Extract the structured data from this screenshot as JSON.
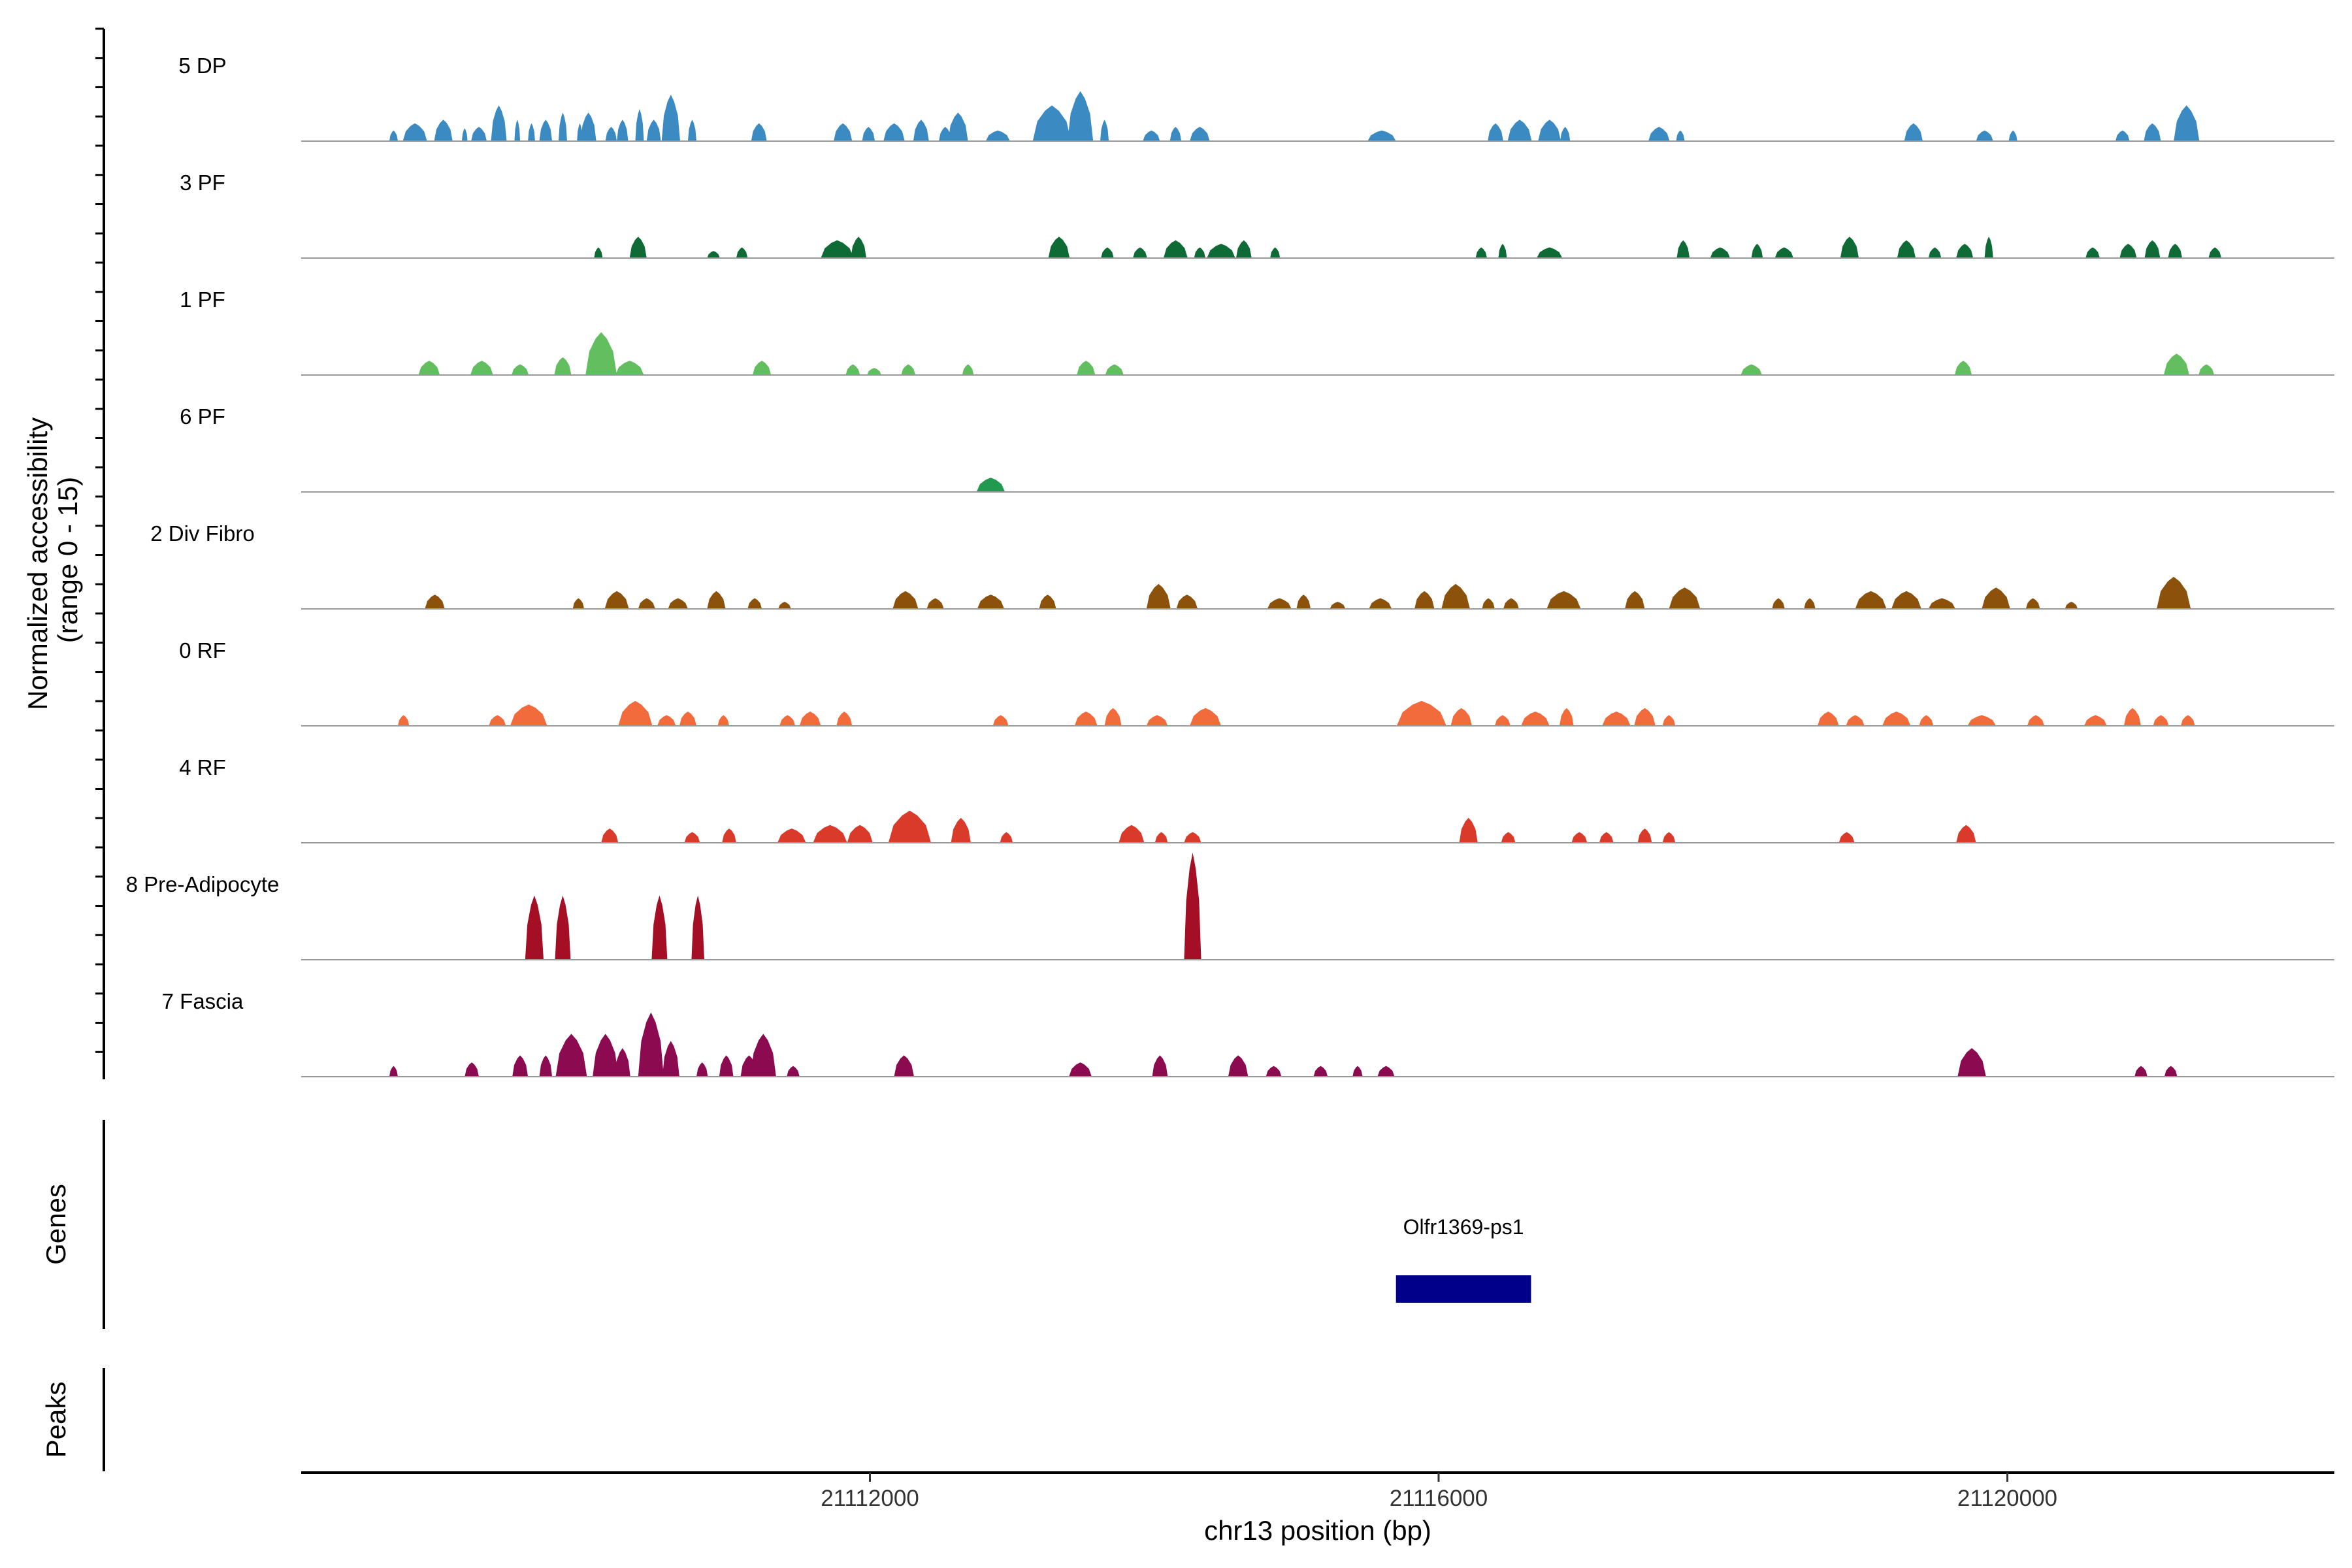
{
  "chart_data": {
    "type": "area",
    "title": "",
    "ylabel": "Normalized accessibility\n(range 0 - 15)",
    "ylim": [
      0,
      15
    ],
    "xlabel": "chr13 position (bp)",
    "xlim": [
      21108000,
      21122300
    ],
    "xticks": [
      21112000,
      21116000,
      21120000
    ],
    "xtick_labels": [
      "21112000",
      "21116000",
      "21120000"
    ],
    "baseline_color": "#999999",
    "tracks": [
      {
        "name": "5 DP",
        "color": "#3B8BC2",
        "peaks": [
          [
            21108650,
            60,
            1.5
          ],
          [
            21108800,
            170,
            2.5
          ],
          [
            21109000,
            130,
            3
          ],
          [
            21109150,
            40,
            1.8
          ],
          [
            21109250,
            110,
            2
          ],
          [
            21109390,
            110,
            5
          ],
          [
            21109520,
            40,
            3
          ],
          [
            21109620,
            50,
            2.5
          ],
          [
            21109720,
            90,
            3
          ],
          [
            21109840,
            60,
            4
          ],
          [
            21109960,
            40,
            2.5
          ],
          [
            21110020,
            110,
            4
          ],
          [
            21110180,
            80,
            2
          ],
          [
            21110260,
            80,
            3
          ],
          [
            21110380,
            60,
            4.5
          ],
          [
            21110480,
            100,
            3
          ],
          [
            21110600,
            130,
            6.5
          ],
          [
            21110750,
            60,
            3
          ],
          [
            21111220,
            110,
            2.5
          ],
          [
            21111810,
            130,
            2.5
          ],
          [
            21111990,
            90,
            2
          ],
          [
            21112170,
            150,
            2.5
          ],
          [
            21112360,
            110,
            3
          ],
          [
            21112530,
            90,
            2
          ],
          [
            21112620,
            140,
            4
          ],
          [
            21112900,
            170,
            1.5
          ],
          [
            21113280,
            270,
            5
          ],
          [
            21113480,
            180,
            7
          ],
          [
            21113650,
            60,
            3
          ],
          [
            21113980,
            120,
            1.5
          ],
          [
            21114150,
            80,
            2
          ],
          [
            21114320,
            140,
            2
          ],
          [
            21115600,
            200,
            1.5
          ],
          [
            21116400,
            110,
            2.5
          ],
          [
            21116570,
            170,
            3
          ],
          [
            21116780,
            160,
            3
          ],
          [
            21116890,
            70,
            2
          ],
          [
            21117550,
            150,
            2
          ],
          [
            21117700,
            60,
            1.5
          ],
          [
            21119340,
            130,
            2.5
          ],
          [
            21119840,
            120,
            1.5
          ],
          [
            21120040,
            60,
            1.5
          ],
          [
            21120810,
            100,
            1.5
          ],
          [
            21121020,
            120,
            2.5
          ],
          [
            21121260,
            180,
            5
          ]
        ]
      },
      {
        "name": "3 PF",
        "color": "#0E6B35",
        "peaks": [
          [
            21110090,
            60,
            1.5
          ],
          [
            21110370,
            120,
            3
          ],
          [
            21110900,
            90,
            1
          ],
          [
            21111100,
            80,
            1.5
          ],
          [
            21111770,
            230,
            2.5
          ],
          [
            21111920,
            110,
            3
          ],
          [
            21113330,
            150,
            3
          ],
          [
            21113670,
            90,
            1.5
          ],
          [
            21113900,
            100,
            1.5
          ],
          [
            21114150,
            170,
            2.5
          ],
          [
            21114320,
            80,
            1.5
          ],
          [
            21114470,
            200,
            2
          ],
          [
            21114630,
            110,
            2.5
          ],
          [
            21114850,
            70,
            1.5
          ],
          [
            21116300,
            80,
            1.5
          ],
          [
            21116450,
            60,
            2
          ],
          [
            21116780,
            180,
            1.5
          ],
          [
            21117720,
            90,
            2.5
          ],
          [
            21117980,
            140,
            1.5
          ],
          [
            21118240,
            80,
            2
          ],
          [
            21118430,
            130,
            1.5
          ],
          [
            21118890,
            130,
            3
          ],
          [
            21119290,
            130,
            2.5
          ],
          [
            21119490,
            90,
            1.5
          ],
          [
            21119700,
            120,
            2
          ],
          [
            21119870,
            60,
            3
          ],
          [
            21120600,
            100,
            1.5
          ],
          [
            21120850,
            120,
            2
          ],
          [
            21121020,
            110,
            2.5
          ],
          [
            21121180,
            100,
            2
          ],
          [
            21121460,
            90,
            1.5
          ]
        ]
      },
      {
        "name": "1 PF",
        "color": "#63BE5F",
        "peaks": [
          [
            21108900,
            150,
            2
          ],
          [
            21109270,
            160,
            2
          ],
          [
            21109540,
            120,
            1.5
          ],
          [
            21109840,
            120,
            2.5
          ],
          [
            21110110,
            220,
            6
          ],
          [
            21110310,
            200,
            2
          ],
          [
            21111240,
            130,
            2
          ],
          [
            21111880,
            100,
            1.5
          ],
          [
            21112030,
            100,
            1
          ],
          [
            21112270,
            100,
            1.5
          ],
          [
            21112690,
            80,
            1.5
          ],
          [
            21113520,
            130,
            2
          ],
          [
            21113720,
            130,
            1.5
          ],
          [
            21118200,
            150,
            1.5
          ],
          [
            21119690,
            120,
            2
          ],
          [
            21121190,
            180,
            3
          ],
          [
            21121400,
            110,
            1.5
          ]
        ]
      },
      {
        "name": "6 PF",
        "color": "#21994F",
        "peaks": [
          [
            21112850,
            200,
            2
          ]
        ]
      },
      {
        "name": "2 Div Fibro",
        "color": "#8C510A",
        "peaks": [
          [
            21108940,
            140,
            2
          ],
          [
            21109950,
            80,
            1.5
          ],
          [
            21110220,
            170,
            2.5
          ],
          [
            21110430,
            120,
            1.5
          ],
          [
            21110650,
            140,
            1.5
          ],
          [
            21110920,
            130,
            2.5
          ],
          [
            21111190,
            100,
            1.5
          ],
          [
            21111400,
            90,
            1
          ],
          [
            21112250,
            180,
            2.5
          ],
          [
            21112460,
            120,
            1.5
          ],
          [
            21112850,
            190,
            2
          ],
          [
            21113250,
            120,
            2
          ],
          [
            21114030,
            170,
            3.5
          ],
          [
            21114230,
            150,
            2
          ],
          [
            21114880,
            170,
            1.5
          ],
          [
            21115050,
            100,
            2
          ],
          [
            21115290,
            110,
            1
          ],
          [
            21115590,
            160,
            1.5
          ],
          [
            21115900,
            140,
            2.5
          ],
          [
            21116120,
            200,
            3.5
          ],
          [
            21116350,
            90,
            1.5
          ],
          [
            21116510,
            110,
            1.5
          ],
          [
            21116880,
            240,
            2.5
          ],
          [
            21117380,
            140,
            2.5
          ],
          [
            21117730,
            220,
            3
          ],
          [
            21118390,
            90,
            1.5
          ],
          [
            21118610,
            80,
            1.5
          ],
          [
            21119040,
            220,
            2.5
          ],
          [
            21119290,
            210,
            2.5
          ],
          [
            21119540,
            190,
            1.5
          ],
          [
            21119920,
            200,
            3
          ],
          [
            21120180,
            100,
            1.5
          ],
          [
            21120450,
            90,
            1
          ],
          [
            21121170,
            240,
            4.5
          ]
        ]
      },
      {
        "name": "0 RF",
        "color": "#F26B3D",
        "peaks": [
          [
            21108720,
            80,
            1.5
          ],
          [
            21109380,
            120,
            1.5
          ],
          [
            21109600,
            260,
            3
          ],
          [
            21110350,
            240,
            3.5
          ],
          [
            21110570,
            130,
            1.5
          ],
          [
            21110720,
            120,
            2
          ],
          [
            21110970,
            80,
            1.5
          ],
          [
            21111420,
            110,
            1.5
          ],
          [
            21111580,
            150,
            2
          ],
          [
            21111820,
            110,
            2
          ],
          [
            21112920,
            110,
            1.5
          ],
          [
            21113520,
            160,
            2
          ],
          [
            21113710,
            120,
            2.5
          ],
          [
            21114020,
            150,
            1.5
          ],
          [
            21114360,
            220,
            2.5
          ],
          [
            21115880,
            350,
            3.5
          ],
          [
            21116160,
            150,
            2.5
          ],
          [
            21116450,
            110,
            1.5
          ],
          [
            21116680,
            200,
            2
          ],
          [
            21116900,
            100,
            2.5
          ],
          [
            21117250,
            200,
            2
          ],
          [
            21117450,
            150,
            2.5
          ],
          [
            21117620,
            90,
            1.5
          ],
          [
            21118740,
            150,
            2
          ],
          [
            21118930,
            130,
            1.5
          ],
          [
            21119220,
            200,
            2
          ],
          [
            21119430,
            100,
            1.5
          ],
          [
            21119820,
            200,
            1.5
          ],
          [
            21120200,
            120,
            1.5
          ],
          [
            21120620,
            160,
            1.5
          ],
          [
            21120880,
            120,
            2.5
          ],
          [
            21121080,
            110,
            1.5
          ],
          [
            21121270,
            100,
            1.5
          ]
        ]
      },
      {
        "name": "4 RF",
        "color": "#D93A29",
        "peaks": [
          [
            21110170,
            120,
            2
          ],
          [
            21110750,
            110,
            1.5
          ],
          [
            21111010,
            100,
            2
          ],
          [
            21111450,
            200,
            2
          ],
          [
            21111720,
            240,
            2.5
          ],
          [
            21111930,
            180,
            2.5
          ],
          [
            21112280,
            300,
            4.5
          ],
          [
            21112640,
            140,
            3.5
          ],
          [
            21112960,
            90,
            1.5
          ],
          [
            21113840,
            180,
            2.5
          ],
          [
            21114050,
            90,
            1.5
          ],
          [
            21114270,
            120,
            1.5
          ],
          [
            21116210,
            130,
            3.5
          ],
          [
            21116490,
            100,
            1.5
          ],
          [
            21116990,
            110,
            1.5
          ],
          [
            21117180,
            100,
            1.5
          ],
          [
            21117450,
            100,
            2
          ],
          [
            21117620,
            90,
            1.5
          ],
          [
            21118870,
            110,
            1.5
          ],
          [
            21119710,
            140,
            2.5
          ]
        ]
      },
      {
        "name": "8 Pre-Adipocyte",
        "color": "#A50F26",
        "peaks": [
          [
            21109640,
            130,
            9
          ],
          [
            21109840,
            110,
            9
          ],
          [
            21110520,
            110,
            9
          ],
          [
            21110790,
            90,
            9
          ],
          [
            21114270,
            120,
            15
          ]
        ]
      },
      {
        "name": "7 Fascia",
        "color": "#8B0A50",
        "peaks": [
          [
            21108650,
            60,
            1.5
          ],
          [
            21109200,
            100,
            2
          ],
          [
            21109540,
            110,
            3
          ],
          [
            21109720,
            90,
            3
          ],
          [
            21109900,
            220,
            6
          ],
          [
            21110140,
            180,
            6
          ],
          [
            21110260,
            110,
            4
          ],
          [
            21110460,
            180,
            9
          ],
          [
            21110600,
            120,
            5
          ],
          [
            21110820,
            80,
            2
          ],
          [
            21110990,
            100,
            3
          ],
          [
            21111150,
            120,
            3
          ],
          [
            21111250,
            180,
            6
          ],
          [
            21111460,
            90,
            1.5
          ],
          [
            21112240,
            140,
            3
          ],
          [
            21113480,
            160,
            2
          ],
          [
            21114040,
            110,
            3
          ],
          [
            21114590,
            140,
            3
          ],
          [
            21114840,
            110,
            1.5
          ],
          [
            21115170,
            100,
            1.5
          ],
          [
            21115430,
            70,
            1.5
          ],
          [
            21115630,
            120,
            1.5
          ],
          [
            21119750,
            200,
            4
          ],
          [
            21120940,
            90,
            1.5
          ],
          [
            21121150,
            90,
            1.5
          ]
        ]
      }
    ],
    "genes": {
      "title": "Genes",
      "items": [
        {
          "name": "Olfr1369-ps1",
          "start": 21115700,
          "end": 21116650,
          "color": "#00008B"
        }
      ]
    },
    "peaks_track": {
      "title": "Peaks",
      "items": []
    }
  }
}
